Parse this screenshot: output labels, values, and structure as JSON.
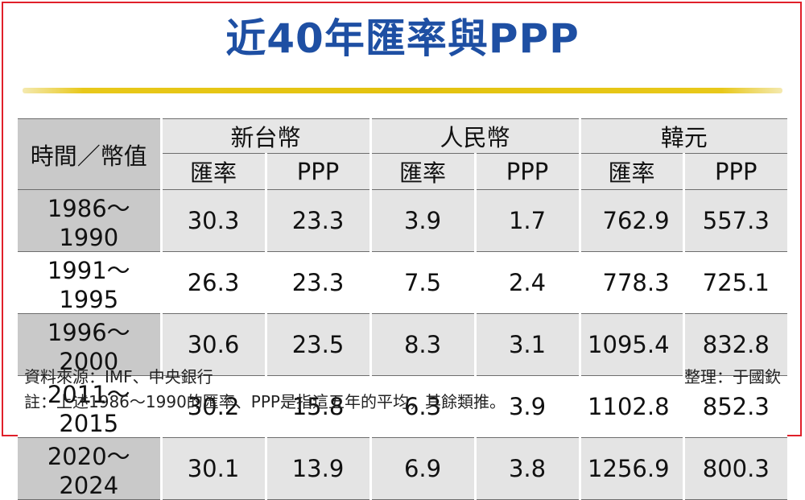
{
  "title": "近40年匯率與PPP",
  "chart_data": {
    "type": "table",
    "title": "近40年匯率與PPP",
    "corner_label": "時間／幣值",
    "groups": [
      "新台幣",
      "人民幣",
      "韓元"
    ],
    "subcolumns": [
      "匯率",
      "PPP"
    ],
    "rows": [
      {
        "period": "1986～1990",
        "values": [
          "30.3",
          "23.3",
          "3.9",
          "1.7",
          "762.9",
          "557.3"
        ]
      },
      {
        "period": "1991～1995",
        "values": [
          "26.3",
          "23.3",
          "7.5",
          "2.4",
          "778.3",
          "725.1"
        ]
      },
      {
        "period": "1996～2000",
        "values": [
          "30.6",
          "23.5",
          "8.3",
          "3.1",
          "1095.4",
          "832.8"
        ]
      },
      {
        "period": "2011～2015",
        "values": [
          "30.2",
          "15.8",
          "6.3",
          "3.9",
          "1102.8",
          "852.3"
        ]
      },
      {
        "period": "2020～2024",
        "values": [
          "30.1",
          "13.9",
          "6.9",
          "3.8",
          "1256.9",
          "800.3"
        ]
      }
    ]
  },
  "footer": {
    "source": "資料來源：IMF、中央銀行",
    "editor": "整理：于國欽",
    "note": "註：上述1986～1990的匯率、PPP是指這五年的平均，其餘類推。"
  },
  "colors": {
    "title": "#1e4fa3",
    "rule": "#e3c20e",
    "border": "#e0202a",
    "shade": "#e4e4e4",
    "corner": "#c9c9c9"
  }
}
